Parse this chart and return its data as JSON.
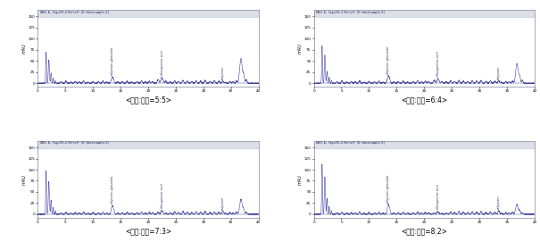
{
  "panels": [
    {
      "label": "<황기:지치=5:5>"
    },
    {
      "label": "<황기:지치=6:4>"
    },
    {
      "label": "<황기:지치=7:3>"
    },
    {
      "label": "<황기:지치=8:2>"
    }
  ],
  "line_color": "#4444aa",
  "bg_color": "#ffffff",
  "header_bg": "#ccd4e0",
  "xlim": [
    0,
    40
  ],
  "ylim": [
    -8,
    165
  ],
  "yticks": [
    0,
    25,
    50,
    75,
    100,
    125,
    150
  ],
  "xticks": [
    0,
    5,
    10,
    15,
    20,
    25,
    30,
    35,
    40
  ],
  "annotations": [
    {
      "x": 13.5,
      "label": "calycosin-glucoside"
    },
    {
      "x": 22.5,
      "label": "Lithospermic acid"
    },
    {
      "x": 33.5,
      "label": "calycosin"
    }
  ],
  "header_text": "DAD1 A, Sig=254,4 Ref=off [D:\\data\\sample.D]",
  "ylabel": "mAU"
}
